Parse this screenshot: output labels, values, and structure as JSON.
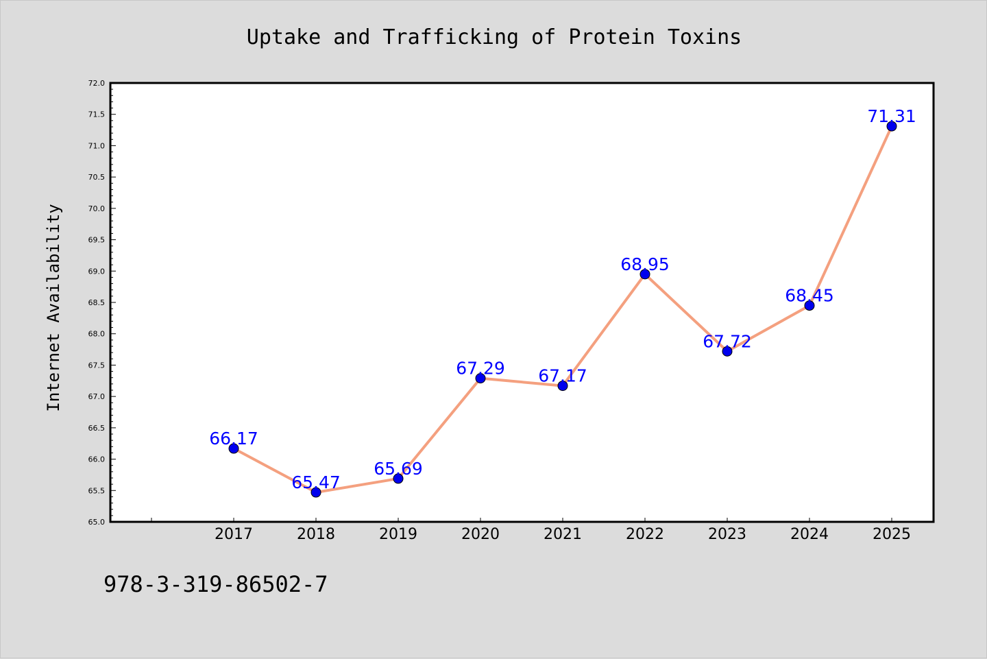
{
  "chart_data": {
    "type": "line",
    "title": "Uptake and Trafficking of Protein Toxins",
    "ylabel": "Internet Availability",
    "xlabel": "",
    "categories": [
      "2017",
      "2018",
      "2019",
      "2020",
      "2021",
      "2022",
      "2023",
      "2024",
      "2025"
    ],
    "series": [
      {
        "values": [
          66.17,
          65.47,
          65.69,
          67.29,
          67.17,
          68.95,
          67.72,
          68.45,
          71.31
        ],
        "labels": [
          "66.17",
          "65.47",
          "65.69",
          "67.29",
          "67.17",
          "68.95",
          "67.72",
          "68.45",
          "71.31"
        ]
      }
    ],
    "ylim": [
      65.0,
      72.0
    ],
    "yticks": [
      "65.0",
      "65.5",
      "66.0",
      "66.5",
      "67.0",
      "67.5",
      "68.0",
      "68.5",
      "69.0",
      "69.5",
      "70.0",
      "70.5",
      "71.0",
      "71.5",
      "72.0"
    ],
    "grid": false,
    "line_color": "#f4a07f",
    "marker_color": "#0000ee",
    "label_color": "#0000ff",
    "background_color": "#dcdcdc",
    "plot_background": "#ffffff"
  },
  "footer": {
    "isbn": "978-3-319-86502-7"
  }
}
